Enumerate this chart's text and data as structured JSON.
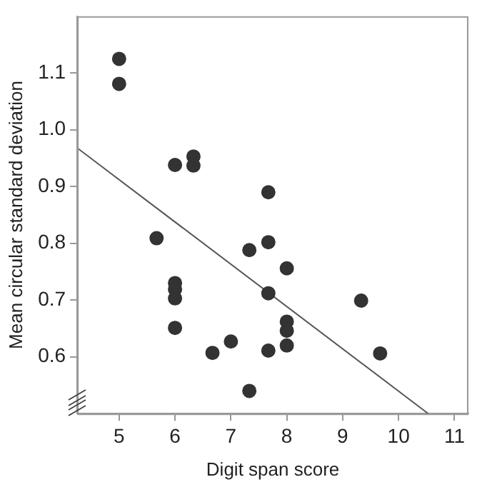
{
  "chart_data": {
    "type": "scatter",
    "xlabel": "Digit span score",
    "ylabel": "Mean circular standard deviation",
    "xlim": [
      4.25,
      11.25
    ],
    "ylim": [
      0.5,
      1.2
    ],
    "xticks": [
      5,
      6,
      7,
      8,
      9,
      10,
      11
    ],
    "yticks": [
      0.6,
      0.7,
      0.8,
      0.9,
      {
        "value": 1,
        "label": "1.0"
      },
      1.1
    ],
    "grid": false,
    "legend": false,
    "marker": "circle",
    "series": [
      {
        "type": "scatter",
        "color": "#333333",
        "x": [
          5,
          5,
          6,
          6.33,
          6.33,
          7.67,
          5.67,
          7.33,
          7.67,
          8,
          6,
          6,
          6,
          6,
          7.67,
          8,
          8,
          8,
          9.33,
          9.67,
          6.67,
          7,
          7.67,
          7.33
        ],
        "values": [
          1.125,
          1.081,
          0.938,
          0.953,
          0.937,
          0.89,
          0.809,
          0.788,
          0.802,
          0.756,
          0.73,
          0.719,
          0.703,
          0.651,
          0.712,
          0.662,
          0.646,
          0.62,
          0.699,
          0.606,
          0.607,
          0.627,
          0.611,
          0.54
        ]
      },
      {
        "type": "line",
        "color": "#555555",
        "marker": "none",
        "x": [
          4.25,
          10.53
        ],
        "values": [
          0.968,
          0.5
        ]
      }
    ]
  }
}
